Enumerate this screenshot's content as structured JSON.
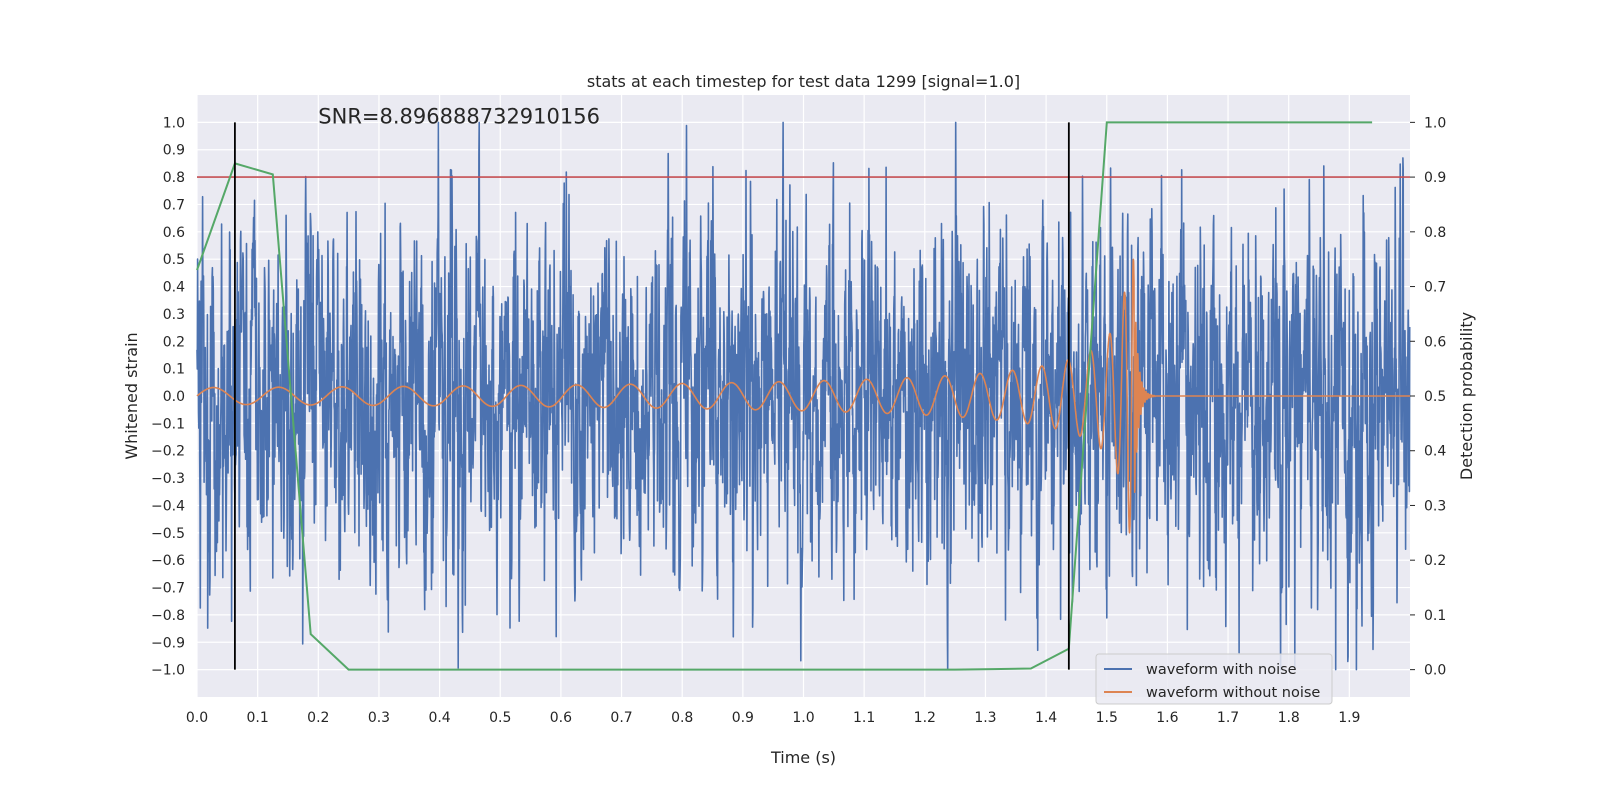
{
  "chart_data": {
    "type": "line",
    "title": "stats at each timestep for test data 1299 [signal=1.0]",
    "annotation": "SNR=8.896888732910156",
    "xlabel": "Time (s)",
    "ylabel_left": "Whitened strain",
    "ylabel_right": "Detection probability",
    "xlim": [
      0.0,
      2.0
    ],
    "ylim_left": [
      -1.1,
      1.1
    ],
    "ylim_right": [
      -0.05,
      1.05
    ],
    "x_ticks": [
      "0.0",
      "0.1",
      "0.2",
      "0.3",
      "0.4",
      "0.5",
      "0.6",
      "0.7",
      "0.8",
      "0.9",
      "1.0",
      "1.1",
      "1.2",
      "1.3",
      "1.4",
      "1.5",
      "1.6",
      "1.7",
      "1.8",
      "1.9"
    ],
    "y_left_ticks": [
      "1.0",
      "0.9",
      "0.8",
      "0.7",
      "0.6",
      "0.5",
      "0.4",
      "0.3",
      "0.2",
      "0.1",
      "0.0",
      "−0.1",
      "−0.2",
      "−0.3",
      "−0.4",
      "−0.5",
      "−0.6",
      "−0.7",
      "−0.8",
      "−0.9",
      "−1.0"
    ],
    "y_right_ticks": [
      "1.0",
      "0.9",
      "0.8",
      "0.7",
      "0.6",
      "0.5",
      "0.4",
      "0.3",
      "0.2",
      "0.1",
      "0.0"
    ],
    "grid": true,
    "legend_position": "lower-right",
    "colors": {
      "background": "#eaeaf2",
      "noisy": "#4c72b0",
      "clean": "#dd8452",
      "probability": "#55a868",
      "threshold": "#c44e52",
      "markers": "#000000"
    },
    "threshold_probability": 0.9,
    "vertical_markers_x": [
      0.0625,
      1.4375
    ],
    "series": [
      {
        "name": "waveform with noise",
        "role": "noisy",
        "sample_rate_hz": 2048,
        "generation": "stochastic",
        "approx_std": 0.32,
        "approx_range": [
          -1.0,
          1.0
        ]
      },
      {
        "name": "waveform without noise",
        "role": "clean",
        "chirp_start_amplitude": 0.03,
        "chirp_peak_time": 1.545,
        "chirp_peak_amplitude": 0.44,
        "chirp_min_amplitude": -0.6,
        "chirp_end_time": 1.56
      },
      {
        "role": "probability",
        "axis": "right",
        "points": [
          [
            0.0,
            0.73
          ],
          [
            0.0625,
            0.925
          ],
          [
            0.125,
            0.905
          ],
          [
            0.1875,
            0.065
          ],
          [
            0.25,
            0.0
          ],
          [
            0.3125,
            0.0
          ],
          [
            1.25,
            0.0
          ],
          [
            1.3125,
            0.001
          ],
          [
            1.375,
            0.002
          ],
          [
            1.4375,
            0.038
          ],
          [
            1.5,
            1.0
          ],
          [
            1.5625,
            1.0
          ],
          [
            1.9375,
            1.0
          ]
        ]
      }
    ]
  }
}
